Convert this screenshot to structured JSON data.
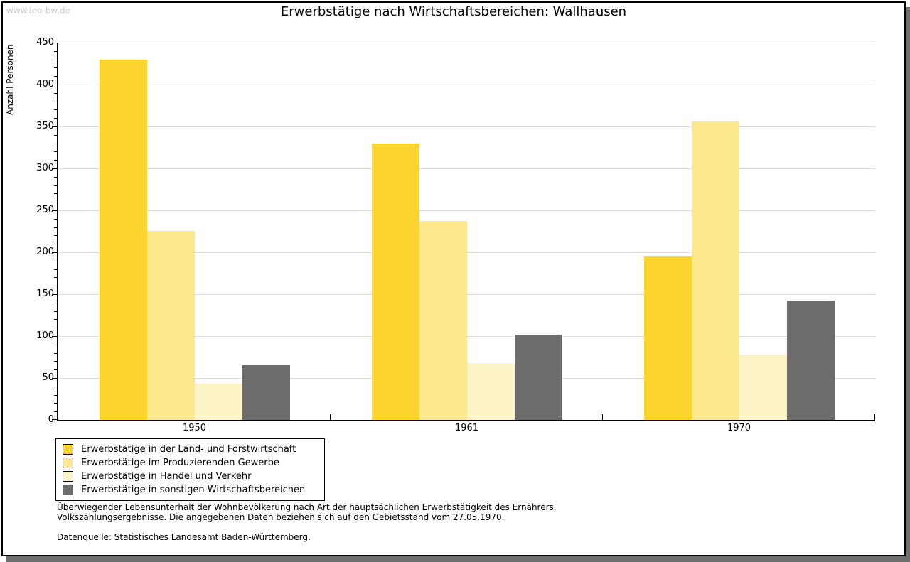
{
  "watermark": "www.leo-bw.de",
  "colors": {
    "grid": "#dcdcdc",
    "axis": "#000000",
    "watermark": "#c9c9c9",
    "frame_shadow": "#6e6e6e"
  },
  "chart_data": {
    "type": "bar",
    "title": "Erwerbstätige nach Wirtschaftsbereichen: Wallhausen",
    "xlabel": "",
    "ylabel": "Anzahl Personen",
    "categories": [
      "1950",
      "1961",
      "1970"
    ],
    "series": [
      {
        "name": "Erwerbstätige in der Land- und Forstwirtschaft",
        "color": "#fbd42f",
        "values": [
          430,
          330,
          195
        ]
      },
      {
        "name": "Erwerbstätige im Produzierenden Gewerbe",
        "color": "#fbe88d",
        "values": [
          225,
          237,
          356
        ]
      },
      {
        "name": "Erwerbstätige in Handel und Verkehr",
        "color": "#fcf4c7",
        "values": [
          43,
          68,
          78
        ]
      },
      {
        "name": "Erwerbstätige in sonstigen Wirtschaftsbereichen",
        "color": "#6c6c6c",
        "values": [
          65,
          102,
          142
        ]
      }
    ],
    "ylim": [
      0,
      450
    ],
    "yticks": [
      0,
      50,
      100,
      150,
      200,
      250,
      300,
      350,
      400,
      450
    ],
    "minor_tick_step": 10,
    "grid": true,
    "legend_position": "bottom-left"
  },
  "footnotes": {
    "line1": "Überwiegender Lebensunterhalt der Wohnbevölkerung nach Art der hauptsächlichen Erwerbstätigkeit des Ernährers.",
    "line2": "Volkszählungsergebnisse. Die angegebenen Daten beziehen sich auf den Gebietsstand vom 27.05.1970.",
    "source": "Datenquelle: Statistisches Landesamt Baden-Württemberg."
  }
}
